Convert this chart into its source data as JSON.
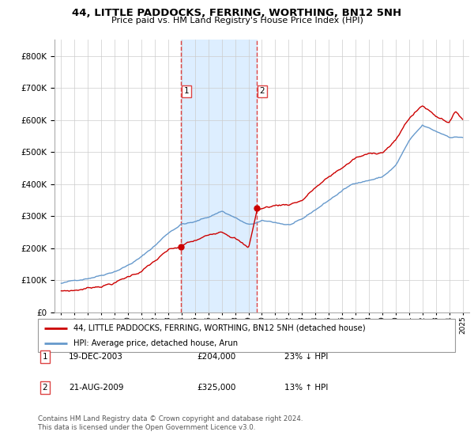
{
  "title": "44, LITTLE PADDOCKS, FERRING, WORTHING, BN12 5NH",
  "subtitle": "Price paid vs. HM Land Registry's House Price Index (HPI)",
  "legend_label_red": "44, LITTLE PADDOCKS, FERRING, WORTHING, BN12 5NH (detached house)",
  "legend_label_blue": "HPI: Average price, detached house, Arun",
  "annotation1_date": "19-DEC-2003",
  "annotation1_price": "£204,000",
  "annotation1_pct": "23% ↓ HPI",
  "annotation2_date": "21-AUG-2009",
  "annotation2_price": "£325,000",
  "annotation2_pct": "13% ↑ HPI",
  "footer": "Contains HM Land Registry data © Crown copyright and database right 2024.\nThis data is licensed under the Open Government Licence v3.0.",
  "red_color": "#cc0000",
  "blue_color": "#6699cc",
  "shaded_color": "#ddeeff",
  "vline_color": "#dd4444",
  "sale1_x": 2003.96,
  "sale1_y": 204000,
  "sale2_x": 2009.63,
  "sale2_y": 325000,
  "ylim": [
    0,
    850000
  ],
  "yticks": [
    0,
    100000,
    200000,
    300000,
    400000,
    500000,
    600000,
    700000,
    800000
  ],
  "xlim_left": 1994.5,
  "xlim_right": 2025.5
}
